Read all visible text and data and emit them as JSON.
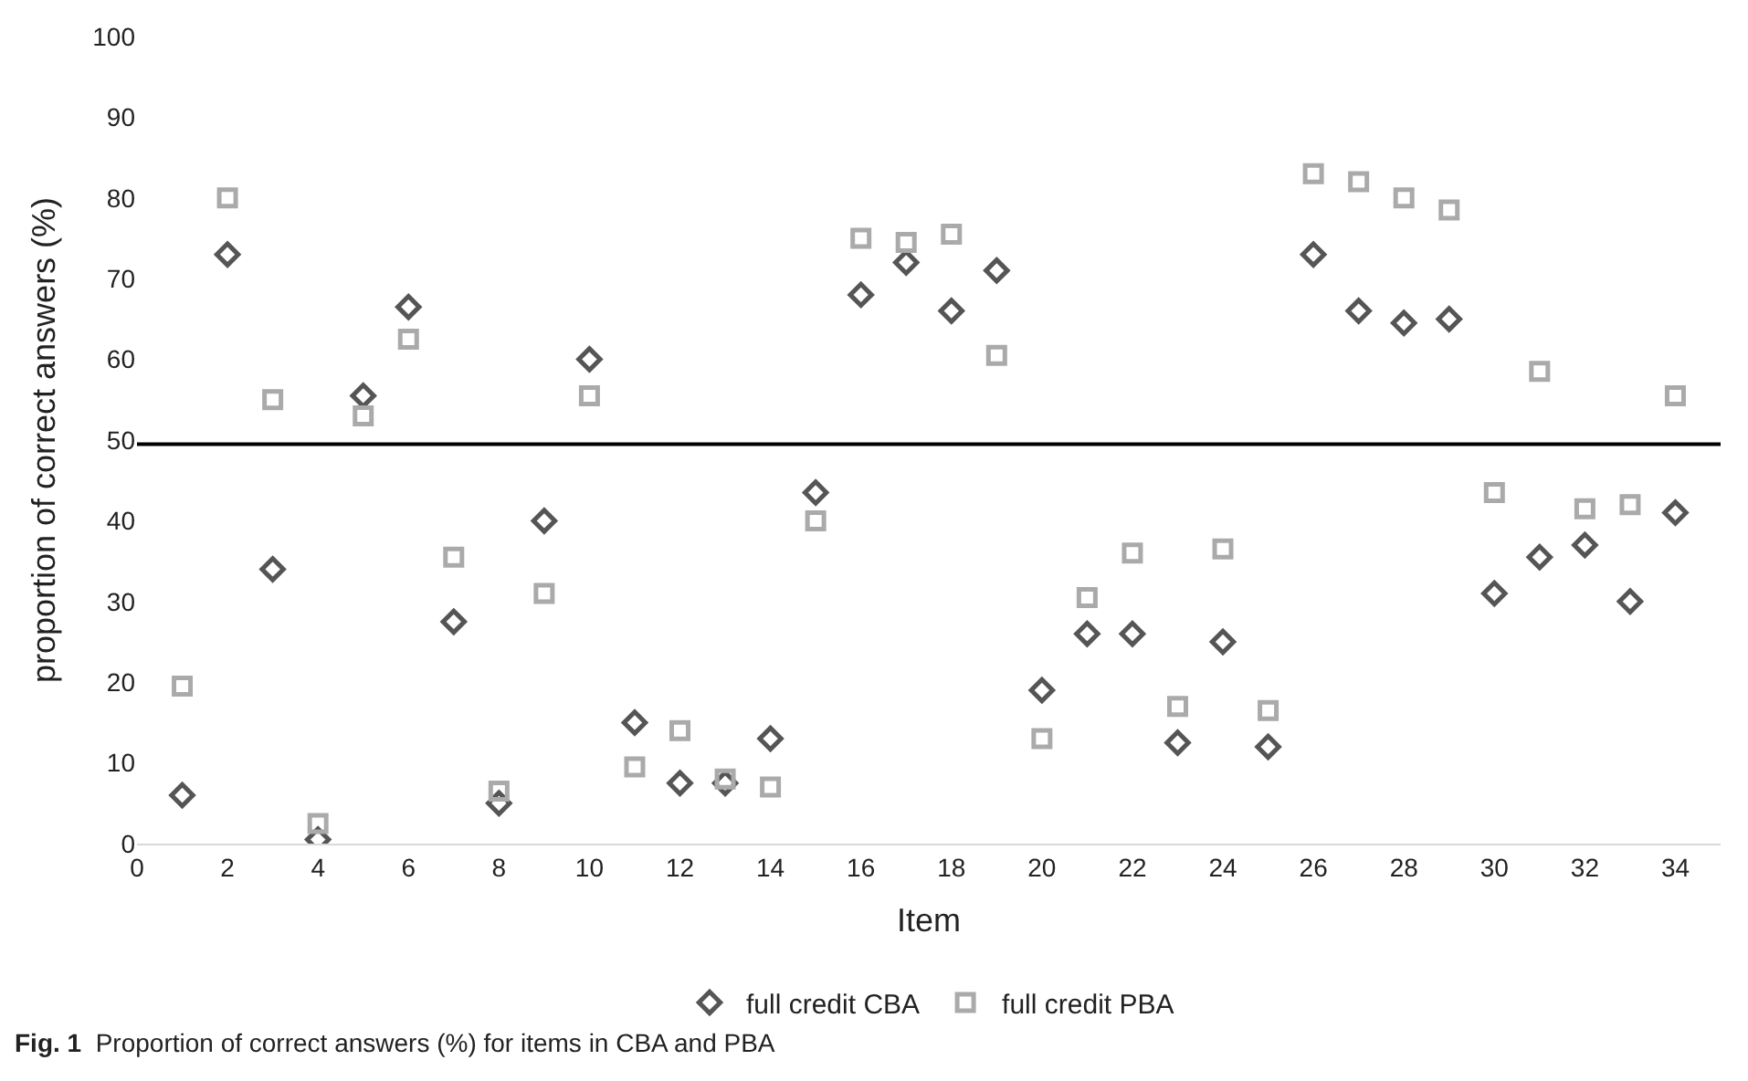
{
  "chart_data": {
    "type": "scatter",
    "xlabel": "Item",
    "ylabel": "proportion of correct answers (%)",
    "x": [
      1,
      2,
      3,
      4,
      5,
      6,
      7,
      8,
      9,
      10,
      11,
      12,
      13,
      14,
      15,
      16,
      17,
      18,
      19,
      20,
      21,
      22,
      23,
      24,
      25,
      26,
      27,
      28,
      29,
      30,
      31,
      32,
      33,
      34
    ],
    "series": [
      {
        "name": "full credit CBA",
        "color": "#555555",
        "marker": "diamond",
        "values": [
          6,
          73,
          34,
          0.5,
          55.5,
          66.5,
          27.5,
          5,
          40,
          60,
          15,
          7.5,
          7.5,
          13,
          43.5,
          68,
          72,
          66,
          71,
          19,
          26,
          26,
          12.5,
          25,
          12,
          73,
          66,
          64.5,
          65,
          31,
          35.5,
          37,
          30,
          41
        ]
      },
      {
        "name": "full credit PBA",
        "color": "#aaaaaa",
        "marker": "square",
        "values": [
          19.5,
          80,
          55,
          2.5,
          53,
          62.5,
          35.5,
          6.5,
          31,
          55.5,
          9.5,
          14,
          8,
          7,
          40,
          75,
          74.5,
          75.5,
          60.5,
          13,
          30.5,
          36,
          17,
          36.5,
          16.5,
          83,
          82,
          80,
          78.5,
          43.5,
          58.5,
          41.5,
          42,
          55.5
        ]
      }
    ],
    "xlim": [
      0,
      35
    ],
    "xticks": [
      0,
      2,
      4,
      6,
      8,
      10,
      12,
      14,
      16,
      18,
      20,
      22,
      24,
      26,
      28,
      30,
      32,
      34
    ],
    "ylim": [
      0,
      100
    ],
    "yticks": [
      0,
      10,
      20,
      30,
      40,
      50,
      60,
      70,
      80,
      90,
      100
    ],
    "ref_lines": [
      {
        "axis": "y",
        "value": 49.5,
        "color": "#000000"
      }
    ],
    "grid": false,
    "legend": "bottom",
    "annotations": [
      "Fig. 1 Proportion of correct answers (%) for items in CBA and PBA"
    ]
  }
}
